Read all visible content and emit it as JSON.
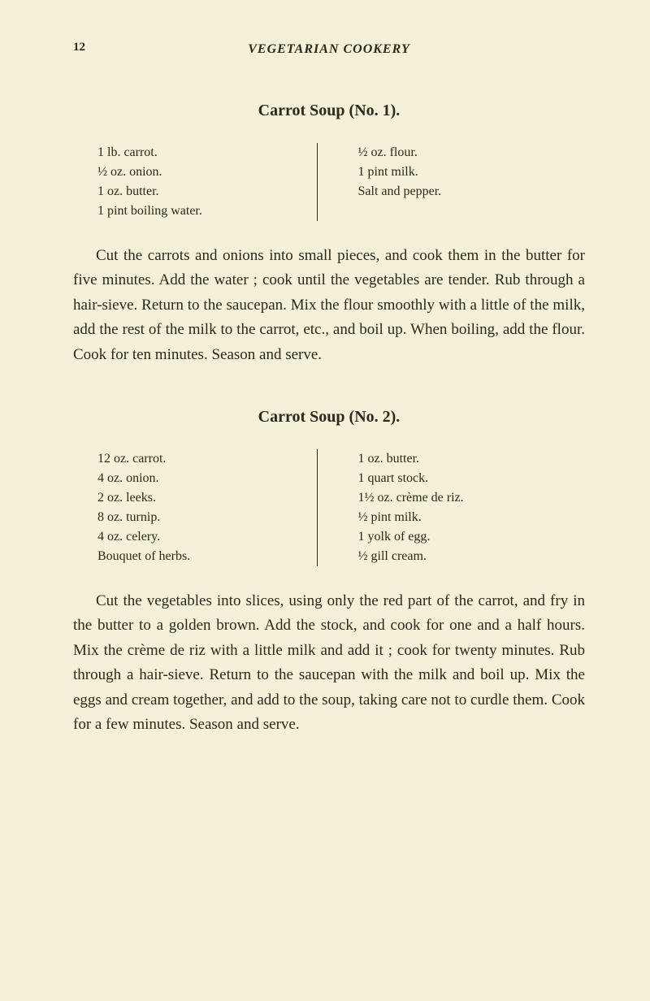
{
  "pageNumber": "12",
  "header": "VEGETARIAN COOKERY",
  "recipe1": {
    "title": "Carrot Soup (No. 1).",
    "ingredientsLeft": [
      "1 lb. carrot.",
      "½ oz. onion.",
      "1 oz. butter.",
      "1 pint boiling water."
    ],
    "ingredientsRight": [
      "½ oz. flour.",
      "1 pint milk.",
      "Salt and pepper."
    ],
    "instructions": "Cut the carrots and onions into small pieces, and cook them in the butter for five minutes. Add the water ; cook until the vegetables are tender. Rub through a hair-sieve. Return to the saucepan. Mix the flour smoothly with a little of the milk, add the rest of the milk to the carrot, etc., and boil up. When boiling, add the flour. Cook for ten minutes. Season and serve."
  },
  "recipe2": {
    "title": "Carrot Soup (No. 2).",
    "ingredientsLeft": [
      "12 oz. carrot.",
      "4 oz. onion.",
      "2 oz. leeks.",
      "8 oz. turnip.",
      "4 oz. celery.",
      "Bouquet of herbs."
    ],
    "ingredientsRight": [
      "1 oz. butter.",
      "1 quart stock.",
      "1½ oz. crème de riz.",
      "½ pint milk.",
      "1 yolk of egg.",
      "½ gill cream."
    ],
    "instructions": "Cut the vegetables into slices, using only the red part of the carrot, and fry in the butter to a golden brown. Add the stock, and cook for one and a half hours. Mix the crème de riz with a little milk and add it ; cook for twenty minutes. Rub through a hair-sieve. Return to the saucepan with the milk and boil up. Mix the eggs and cream together, and add to the soup, taking care not to curdle them. Cook for a few minutes. Season and serve."
  }
}
